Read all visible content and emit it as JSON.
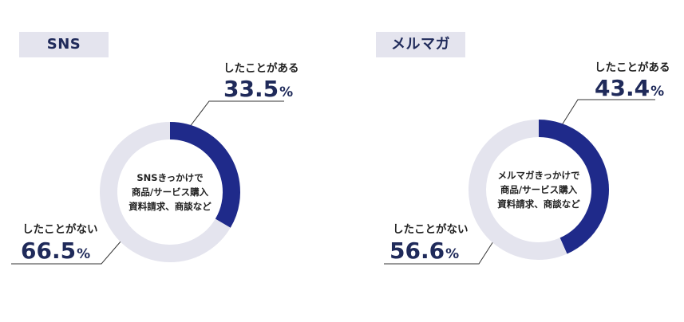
{
  "colors": {
    "accent": "#1f2a8a",
    "track": "#e4e4ee",
    "text": "#1f2a5a"
  },
  "chart_data": [
    {
      "type": "pie",
      "title": "SNS",
      "center_label": [
        "SNSきっかけで",
        "商品/サービス購入",
        "資料請求、商談など"
      ],
      "slices": [
        {
          "label": "したことがある",
          "value": 33.5
        },
        {
          "label": "したことがない",
          "value": 66.5
        }
      ],
      "unit": "%"
    },
    {
      "type": "pie",
      "title": "メルマガ",
      "center_label": [
        "メルマガきっかけで",
        "商品/サービス購入",
        "資料請求、商談など"
      ],
      "slices": [
        {
          "label": "したことがある",
          "value": 43.4
        },
        {
          "label": "したことがない",
          "value": 56.6
        }
      ],
      "unit": "%"
    }
  ]
}
